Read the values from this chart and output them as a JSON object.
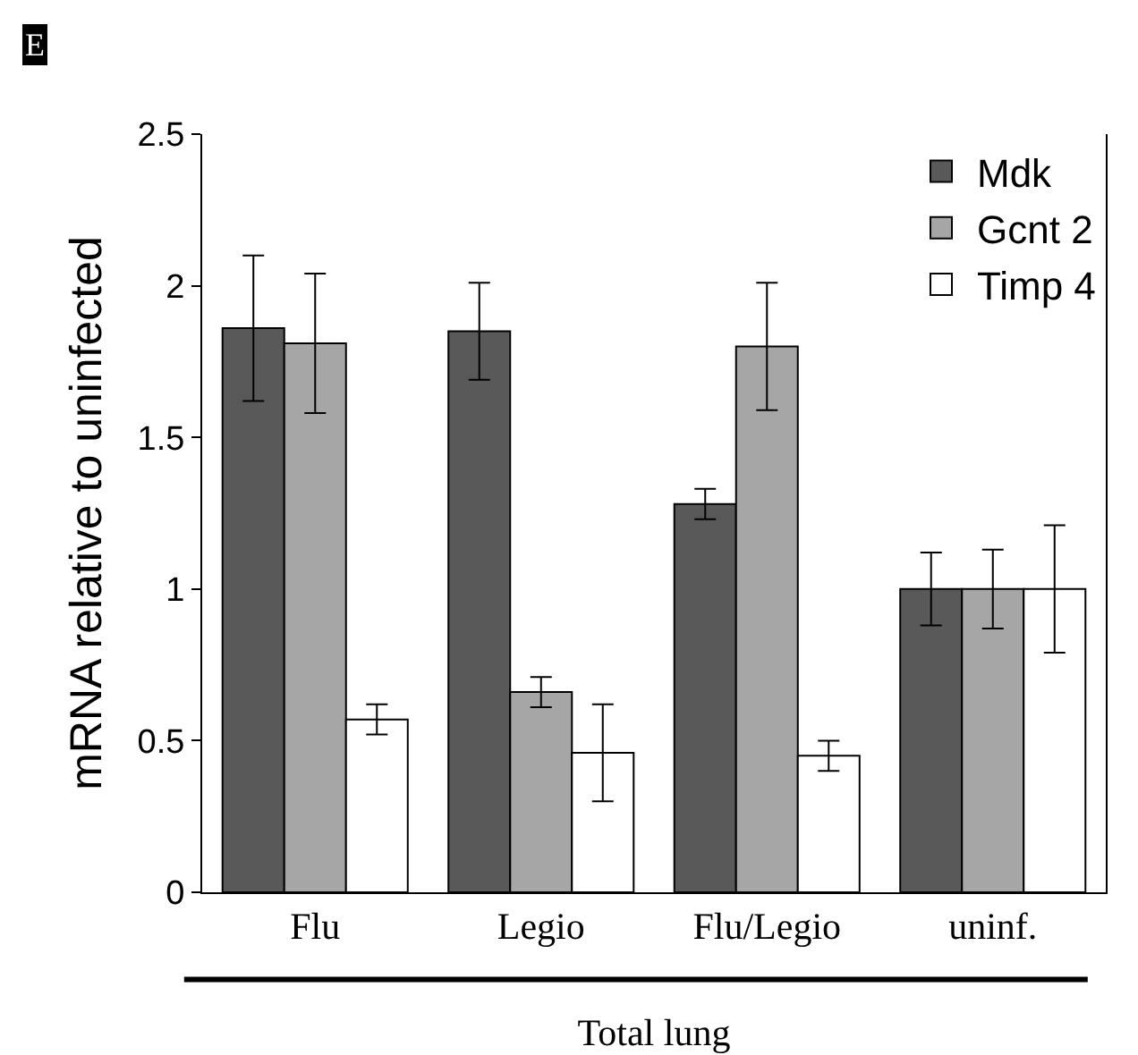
{
  "chart_data": {
    "type": "bar",
    "xlabel": "Total lung",
    "ylabel": "mRNA relative to uninfected",
    "annotations": [
      "E"
    ],
    "categories": [
      "Flu",
      "Legio",
      "Flu/Legio",
      "uninf."
    ],
    "series": [
      {
        "name": "Mdk",
        "color": "#595959",
        "values": [
          1.86,
          1.85,
          1.28,
          1.0
        ],
        "errors": [
          0.24,
          0.16,
          0.05,
          0.12
        ]
      },
      {
        "name": "Gcnt 2",
        "color": "#a6a6a6",
        "values": [
          1.81,
          0.66,
          1.8,
          1.0
        ],
        "errors": [
          0.23,
          0.05,
          0.21,
          0.13
        ]
      },
      {
        "name": "Timp 4",
        "color": "#ffffff",
        "values": [
          0.57,
          0.46,
          0.45,
          1.0
        ],
        "errors": [
          0.05,
          0.16,
          0.05,
          0.21
        ]
      }
    ],
    "ylim": [
      0,
      2.5
    ],
    "yticks": [
      0,
      0.5,
      1,
      1.5,
      2,
      2.5
    ],
    "grid": false,
    "legend": "top right"
  }
}
